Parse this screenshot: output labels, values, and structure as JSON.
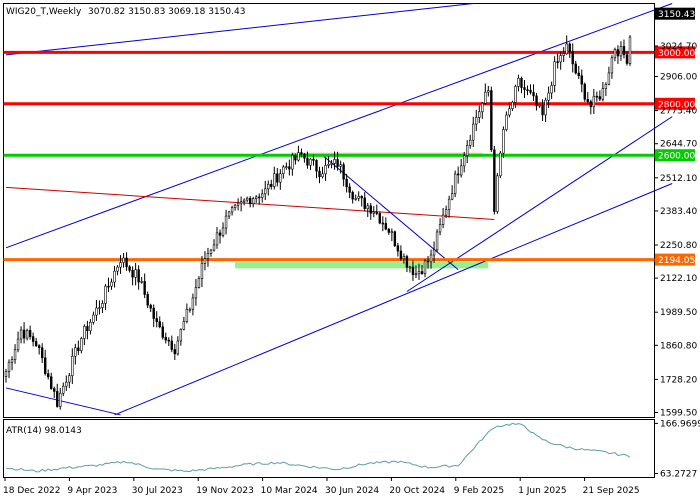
{
  "chart_data": [
    {
      "type": "candlestick",
      "title": "WIG20_T,Weekly",
      "ohlc_label": "3070.82 3150.83 3069.18 3150.43",
      "last_value": "3150.43",
      "ylim": [
        1580,
        3190
      ],
      "price_axis_ticks": [
        "3024.70",
        "2906.00",
        "2773.40",
        "2644.70",
        "2512.10",
        "2383.40",
        "2250.80",
        "2122.10",
        "1989.50",
        "1860.80",
        "1728.20",
        "1599.50"
      ],
      "x_tick_labels": [
        "18 Dec 2022",
        "9 Apr 2023",
        "30 Jul 2023",
        "19 Nov 2023",
        "10 Mar 2024",
        "30 Jun 2024",
        "20 Oct 2024",
        "9 Feb 2025",
        "1 Jun 2025",
        "21 Sep 2025"
      ],
      "colors": {
        "bull": "#ffffff",
        "bear": "#000000",
        "wick": "#000000",
        "trend": "#0000cc",
        "diag_red": "#cc0000"
      },
      "levels": [
        {
          "value": 3000.0,
          "label": "3000.00",
          "color": "#ff0000"
        },
        {
          "value": 2800.0,
          "label": "2800.00",
          "color": "#ff0000"
        },
        {
          "value": 2600.0,
          "label": "2600.00",
          "color": "#00cc00"
        },
        {
          "value": 2194.05,
          "label": "2194.05",
          "color": "#ff6600"
        }
      ],
      "zones": [
        {
          "from_week": 95,
          "to_week": 158,
          "low": 2590,
          "high": 2610,
          "color": "#f4c6c6"
        },
        {
          "from_week": 76,
          "to_week": 160,
          "low": 2160,
          "high": 2185,
          "color": "#99f090"
        }
      ],
      "trendlines": [
        {
          "x1": 0,
          "y1": 2990,
          "x2": 155,
          "y2": 3190,
          "color": "#0000cc"
        },
        {
          "x1": 0,
          "y1": 2240,
          "x2": 221,
          "y2": 3190,
          "color": "#0000cc"
        },
        {
          "x1": 0,
          "y1": 1695,
          "x2": 38,
          "y2": 1590,
          "color": "#0000cc"
        },
        {
          "x1": 36,
          "y1": 1590,
          "x2": 221,
          "y2": 2490,
          "color": "#0000cc"
        },
        {
          "x1": 133,
          "y1": 2070,
          "x2": 221,
          "y2": 2750,
          "color": "#0000cc"
        },
        {
          "x1": 0,
          "y1": 2475,
          "x2": 162,
          "y2": 2350,
          "color": "#cc0000"
        },
        {
          "x1": 105,
          "y1": 2600,
          "x2": 150,
          "y2": 2155,
          "color": "#0000cc"
        }
      ],
      "weeks": 208,
      "waypoints": [
        [
          0,
          1760
        ],
        [
          5,
          1920
        ],
        [
          10,
          1870
        ],
        [
          17,
          1640
        ],
        [
          25,
          1890
        ],
        [
          32,
          2040
        ],
        [
          38,
          2200
        ],
        [
          44,
          2120
        ],
        [
          50,
          1940
        ],
        [
          56,
          1850
        ],
        [
          61,
          2010
        ],
        [
          66,
          2200
        ],
        [
          73,
          2350
        ],
        [
          80,
          2430
        ],
        [
          86,
          2460
        ],
        [
          92,
          2550
        ],
        [
          98,
          2600
        ],
        [
          104,
          2540
        ],
        [
          110,
          2570
        ],
        [
          116,
          2430
        ],
        [
          122,
          2390
        ],
        [
          127,
          2310
        ],
        [
          132,
          2200
        ],
        [
          136,
          2140
        ],
        [
          141,
          2200
        ],
        [
          146,
          2400
        ],
        [
          151,
          2580
        ],
        [
          156,
          2750
        ],
        [
          160,
          2850
        ],
        [
          162,
          2400
        ],
        [
          165,
          2700
        ],
        [
          170,
          2880
        ],
        [
          174,
          2830
        ],
        [
          178,
          2750
        ],
        [
          182,
          2940
        ],
        [
          186,
          3020
        ],
        [
          190,
          2890
        ],
        [
          194,
          2790
        ],
        [
          198,
          2850
        ],
        [
          202,
          3020
        ],
        [
          206,
          2980
        ],
        [
          208,
          3150
        ]
      ]
    },
    {
      "type": "line",
      "title": "ATR(14) 98.0143",
      "axis_ticks": [
        "166.9699",
        "63.2727"
      ],
      "ylim": [
        55,
        175
      ],
      "color": "#5f9ea0",
      "waypoints": [
        [
          0,
          75
        ],
        [
          10,
          68
        ],
        [
          20,
          75
        ],
        [
          30,
          80
        ],
        [
          40,
          88
        ],
        [
          50,
          72
        ],
        [
          60,
          68
        ],
        [
          70,
          74
        ],
        [
          80,
          82
        ],
        [
          90,
          86
        ],
        [
          100,
          78
        ],
        [
          110,
          72
        ],
        [
          120,
          84
        ],
        [
          130,
          88
        ],
        [
          140,
          76
        ],
        [
          150,
          80
        ],
        [
          158,
          135
        ],
        [
          162,
          160
        ],
        [
          168,
          166
        ],
        [
          172,
          162
        ],
        [
          176,
          140
        ],
        [
          180,
          128
        ],
        [
          186,
          118
        ],
        [
          192,
          112
        ],
        [
          198,
          108
        ],
        [
          204,
          102
        ],
        [
          208,
          98
        ]
      ]
    }
  ]
}
